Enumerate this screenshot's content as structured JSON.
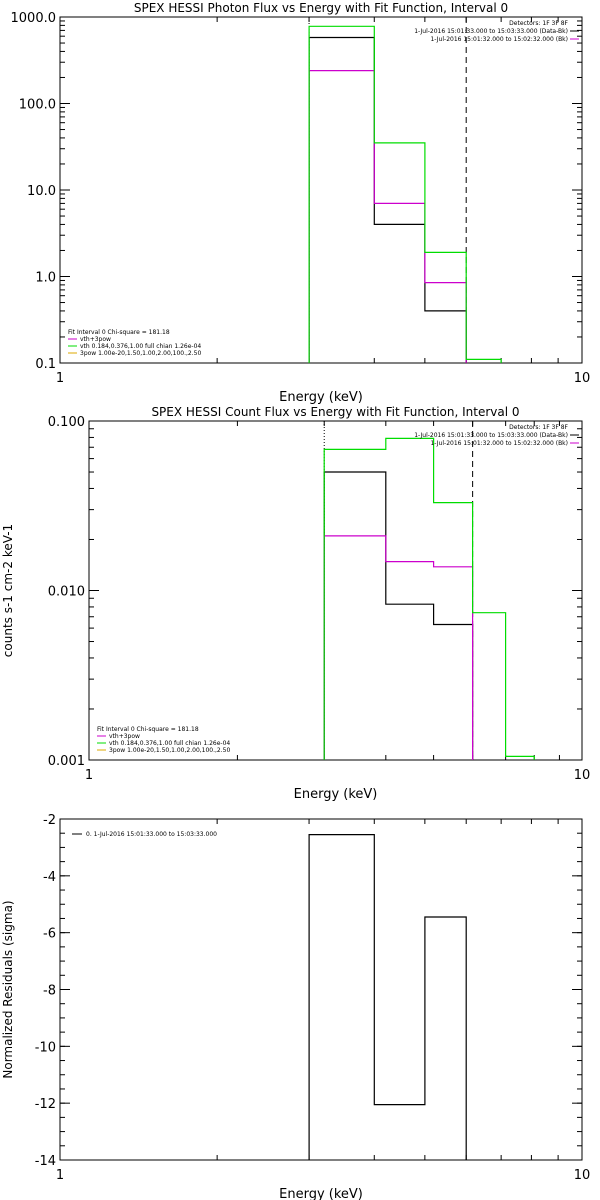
{
  "chart_data": [
    {
      "type": "line",
      "title": "SPEX HESSI Photon Flux vs Energy with Fit Function, Interval 0",
      "xlabel": "Energy (keV)",
      "ylabel": "",
      "xscale": "log",
      "yscale": "log",
      "xlim": [
        1,
        10
      ],
      "ylim": [
        0.1,
        1000
      ],
      "xticks": [
        {
          "v": 1,
          "label": "1"
        },
        {
          "v": 10,
          "label": "10"
        }
      ],
      "yticks": [
        {
          "v": 0.1,
          "label": "0.1"
        },
        {
          "v": 1,
          "label": "1.0"
        },
        {
          "v": 10,
          "label": "10.0"
        },
        {
          "v": 100,
          "label": "100.0"
        },
        {
          "v": 1000,
          "label": "1000.0"
        }
      ],
      "vlines": [
        {
          "x": 3,
          "style": "dotted"
        },
        {
          "x": 6,
          "style": "dashed"
        }
      ],
      "series": [
        {
          "color": "#000000",
          "edges": [
            3,
            4,
            5,
            6
          ],
          "values": [
            580,
            4.0,
            0.4
          ]
        },
        {
          "color": "#cc00cc",
          "edges": [
            3,
            4,
            5,
            6
          ],
          "values": [
            240,
            7.0,
            0.85
          ]
        },
        {
          "color": "#00dd00",
          "edges": [
            3,
            4,
            5,
            6,
            7
          ],
          "values": [
            780,
            35,
            1.9,
            0.11
          ]
        }
      ],
      "legend_tr": [
        "Detectors: 1F 3F 8F",
        "1-Jul-2016 15:01:33.000 to 15:03:33.000 (Data-Bk)",
        "1-Jul-2016 15:01:32.000 to 15:02:32.000 (Bk)"
      ],
      "legend_tr_colors": [
        "#000000",
        "#000000",
        "#cc00cc"
      ],
      "legend_bl": [
        "Fit Interval 0   Chi-square = 181.18",
        "vth+3pow",
        "vth 0.184,0.376,1.00  full chian 1.26e-04",
        "3pow 1.00e-20,1.50,1.00,2.00,100.,2.50"
      ],
      "legend_bl_colors": [
        "#000000",
        "#cc00cc",
        "#00dd00",
        "#ddaa00"
      ]
    },
    {
      "type": "line",
      "title": "SPEX HESSI Count Flux vs Energy with Fit Function, Interval 0",
      "xlabel": "Energy (keV)",
      "ylabel": "counts s-1 cm-2 keV-1",
      "xscale": "log",
      "yscale": "log",
      "xlim": [
        1,
        10
      ],
      "ylim": [
        0.001,
        0.1
      ],
      "xticks": [
        {
          "v": 1,
          "label": "1"
        },
        {
          "v": 10,
          "label": "10"
        }
      ],
      "yticks": [
        {
          "v": 0.001,
          "label": "0.001"
        },
        {
          "v": 0.01,
          "label": "0.010"
        },
        {
          "v": 0.1,
          "label": "0.100"
        }
      ],
      "vlines": [
        {
          "x": 3,
          "style": "dotted"
        },
        {
          "x": 6,
          "style": "dashed"
        }
      ],
      "series": [
        {
          "color": "#000000",
          "edges": [
            3,
            4,
            5,
            6
          ],
          "values": [
            0.05,
            0.0083,
            0.0063
          ]
        },
        {
          "color": "#cc00cc",
          "edges": [
            3,
            4,
            5,
            6
          ],
          "values": [
            0.021,
            0.0148,
            0.0138
          ]
        },
        {
          "color": "#00dd00",
          "edges": [
            3,
            4,
            5,
            6,
            7,
            8
          ],
          "values": [
            0.068,
            0.079,
            0.033,
            0.0074,
            0.00105
          ]
        }
      ],
      "legend_tr": [
        "Detectors: 1F 3F 8F",
        "1-Jul-2016 15:01:33.000 to 15:03:33.000 (Data-Bk)",
        "1-Jul-2016 15:01:32.000 to 15:02:32.000 (Bk)"
      ],
      "legend_tr_colors": [
        "#000000",
        "#000000",
        "#cc00cc"
      ],
      "legend_bl": [
        "Fit Interval 0   Chi-square = 181.18",
        "vth+3pow",
        "vth 0.184,0.376,1.00  full chian 1.26e-04",
        "3pow 1.00e-20,1.50,1.00,2.00,100.,2.50"
      ],
      "legend_bl_colors": [
        "#000000",
        "#cc00cc",
        "#00dd00",
        "#ddaa00"
      ]
    },
    {
      "type": "line",
      "title": "",
      "xlabel": "Energy (keV)",
      "ylabel": "Normalized Residuals (sigma)",
      "xscale": "log",
      "yscale": "linear",
      "xlim": [
        1,
        10
      ],
      "ylim": [
        -14,
        -2
      ],
      "xticks": [
        {
          "v": 1,
          "label": "1"
        },
        {
          "v": 10,
          "label": "10"
        }
      ],
      "yticks": [
        {
          "v": -14,
          "label": "-14"
        },
        {
          "v": -12,
          "label": "-12"
        },
        {
          "v": -10,
          "label": "-10"
        },
        {
          "v": -8,
          "label": "-8"
        },
        {
          "v": -6,
          "label": "-6"
        },
        {
          "v": -4,
          "label": "-4"
        },
        {
          "v": -2,
          "label": "-2"
        }
      ],
      "vlines": [],
      "series": [
        {
          "color": "#000000",
          "edges": [
            3,
            4,
            5,
            6
          ],
          "values": [
            -2.55,
            -12.05,
            -5.45
          ]
        }
      ],
      "legend_tl": [
        "0.  1-Jul-2016 15:01:33.000 to 15:03:33.000"
      ],
      "legend_tl_colors": [
        "#000000"
      ]
    }
  ]
}
